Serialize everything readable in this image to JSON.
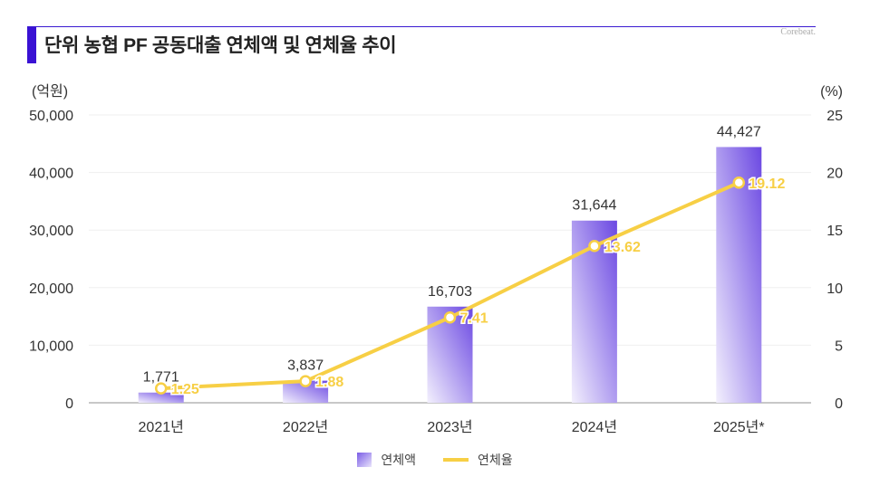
{
  "header": {
    "title": "단위 농협 PF 공동대출 연체액 및 연체율 추이",
    "brand": "Corebeat."
  },
  "colors": {
    "accent": "#3a12d4",
    "bar_top": "#6f4fe3",
    "bar_bottom": "#f1eefc",
    "line": "#f7cf45"
  },
  "chart_data": {
    "type": "bar+line",
    "title": "단위 농협 PF 공동대출 연체액 및 연체율 추이",
    "categories": [
      "2021년",
      "2022년",
      "2023년",
      "2024년",
      "2025년*"
    ],
    "series": [
      {
        "name": "연체액",
        "type": "bar",
        "axis": "left",
        "values": [
          1771,
          3837,
          16703,
          31644,
          44427
        ],
        "labels": [
          "1,771",
          "3,837",
          "16,703",
          "31,644",
          "44,427"
        ]
      },
      {
        "name": "연체율",
        "type": "line",
        "axis": "right",
        "values": [
          1.25,
          1.88,
          7.41,
          13.62,
          19.12
        ],
        "labels": [
          "1.25",
          "1.88",
          "7.41",
          "13.62",
          "19.12"
        ]
      }
    ],
    "left_axis": {
      "unit": "(억원)",
      "ylim": [
        0,
        50000
      ],
      "ticks": [
        "0",
        "10,000",
        "20,000",
        "30,000",
        "40,000",
        "50,000"
      ]
    },
    "right_axis": {
      "unit": "(%)",
      "ylim": [
        0,
        25
      ],
      "ticks": [
        "0",
        "5",
        "10",
        "15",
        "20",
        "25"
      ]
    },
    "grid": true,
    "legend": {
      "position": "bottom-center",
      "entries": [
        "연체액",
        "연체율"
      ]
    }
  }
}
